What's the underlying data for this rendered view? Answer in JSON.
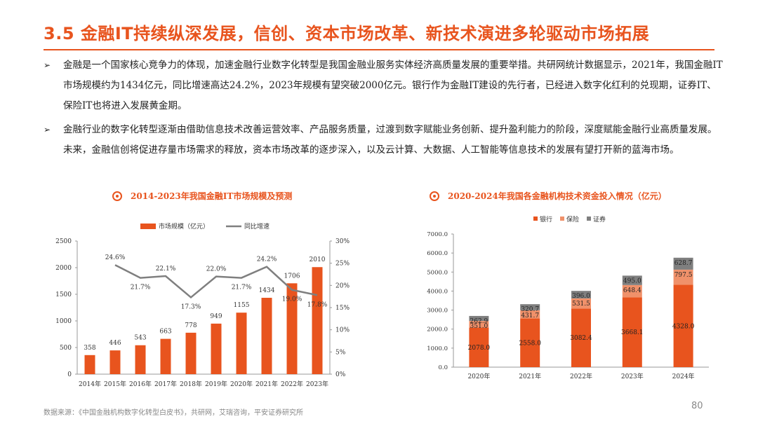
{
  "page": {
    "title": "3.5 金融IT持续纵深发展，信创、资本市场改革、新技术演进多轮驱动市场拓展",
    "bullets": [
      "金融是一个国家核心竞争力的体现，加速金融行业数字化转型是我国金融业服务实体经济高质量发展的重要举措。共研网统计数据显示，2021年，我国金融IT市场规模约为1434亿元，同比增速高达24.2%，2023年规模有望突破2000亿元。银行作为金融IT建设的先行者，已经进入数字化红利的兑现期，证券IT、保险IT也将进入发展黄金期。",
      "金融行业的数字化转型逐渐由借助信息技术改善运营效率、产品服务质量，过渡到数字赋能业务创新、提升盈利能力的阶段，深度赋能金融行业高质量发展。未来，金融信创将促进存量市场需求的释放，资本市场改革的逐步深入，以及云计算、大数据、人工智能等信息技术的发展有望打开新的蓝海市场。"
    ],
    "bullet_mark": "➢",
    "source": "数据来源：《中国金融机构数字化转型白皮书》，共研网，艾瑞咨询，平安证券研究所",
    "page_number": "80",
    "colors": {
      "accent": "#E8541E",
      "orange_mid": "#F0916A",
      "gray": "#7F7F7F"
    }
  },
  "chart_data": [
    {
      "type": "bar+line",
      "title": "2014-2023年我国金融IT市场规模及预测",
      "categories": [
        "2014年",
        "2015年",
        "2016年",
        "2017年",
        "2018年",
        "2019年",
        "2020年",
        "2021年",
        "2022年",
        "2023年"
      ],
      "series": [
        {
          "name": "市场规模（亿元）",
          "axis": "left",
          "values": [
            358,
            446,
            543,
            663,
            778,
            949,
            1155,
            1434,
            1706,
            2010
          ],
          "labels": [
            "358",
            "446",
            "543",
            "663",
            "778",
            "949",
            "1155",
            "1434",
            "1706",
            "2010"
          ]
        },
        {
          "name": "同比增速",
          "axis": "right",
          "values": [
            null,
            24.6,
            21.7,
            22.1,
            17.3,
            22.0,
            21.7,
            24.2,
            19.0,
            17.8
          ],
          "labels": [
            "",
            "24.6%",
            "21.7%",
            "22.1%",
            "17.3%",
            "22.0%",
            "21.7%",
            "24.2%",
            "19.0%",
            "17.8%"
          ]
        }
      ],
      "yleft": {
        "range": [
          0,
          2500
        ],
        "ticks": [
          "0",
          "500",
          "1000",
          "1500",
          "2000",
          "2500"
        ]
      },
      "yright": {
        "range": [
          0,
          30
        ],
        "ticks": [
          "0%",
          "5%",
          "10%",
          "15%",
          "20%",
          "25%",
          "30%"
        ]
      }
    },
    {
      "type": "stacked-bar",
      "title": "2020-2024年我国各金融机构技术资金投入情况（亿元）",
      "categories": [
        "2020年",
        "2021年",
        "2022年",
        "2023年",
        "2024年"
      ],
      "series": [
        {
          "name": "银行",
          "values": [
            2078.0,
            2558.0,
            3082.4,
            3668.1,
            4328.0
          ],
          "labels": [
            "2078.0",
            "2558.0",
            "3082.4",
            "3668.1",
            "4328.0"
          ]
        },
        {
          "name": "保险",
          "values": [
            351.0,
            431.7,
            531.5,
            648.4,
            797.5
          ],
          "labels": [
            "351.0",
            "431.7",
            "531.5",
            "648.4",
            "797.5"
          ]
        },
        {
          "name": "证券",
          "values": [
            262.9,
            320.7,
            396.0,
            495.0,
            628.7
          ],
          "labels": [
            "262.9",
            "320.7",
            "396.0",
            "495.0",
            "628.7"
          ]
        }
      ],
      "ylim": [
        0,
        7000
      ],
      "yticks": [
        "0.0",
        "1000.0",
        "2000.0",
        "3000.0",
        "4000.0",
        "5000.0",
        "6000.0",
        "7000.0"
      ]
    }
  ]
}
